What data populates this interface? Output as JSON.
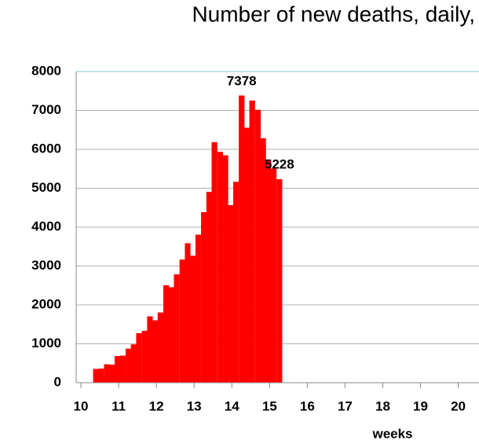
{
  "chart_data": {
    "type": "bar",
    "title": "Number of new deaths, daily,",
    "x_label": "weeks",
    "x": [
      10.4,
      10.54,
      10.69,
      10.83,
      10.97,
      11.11,
      11.26,
      11.4,
      11.54,
      11.69,
      11.83,
      11.97,
      12.11,
      12.26,
      12.4,
      12.54,
      12.69,
      12.83,
      12.97,
      13.11,
      13.26,
      13.4,
      13.54,
      13.69,
      13.83,
      13.97,
      14.11,
      14.26,
      14.4,
      14.54,
      14.69,
      14.83,
      14.97,
      15.11,
      15.26
    ],
    "values": [
      350,
      360,
      470,
      460,
      680,
      690,
      870,
      980,
      1270,
      1330,
      1700,
      1600,
      1800,
      2500,
      2450,
      2780,
      3160,
      3580,
      3260,
      3800,
      4380,
      4900,
      6180,
      5930,
      5840,
      4560,
      5160,
      7378,
      6550,
      7250,
      7010,
      6280,
      5700,
      5500,
      5228
    ],
    "color": "#ff0000",
    "xlim": [
      9.875,
      20.55
    ],
    "xticks": [
      10,
      11,
      12,
      13,
      14,
      15,
      16,
      17,
      18,
      19,
      20
    ],
    "ylim": [
      0,
      8000
    ],
    "yticks": [
      0,
      1000,
      2000,
      3000,
      4000,
      5000,
      6000,
      7000,
      8000
    ],
    "grid": true,
    "labeled_points": [
      27,
      34
    ]
  }
}
